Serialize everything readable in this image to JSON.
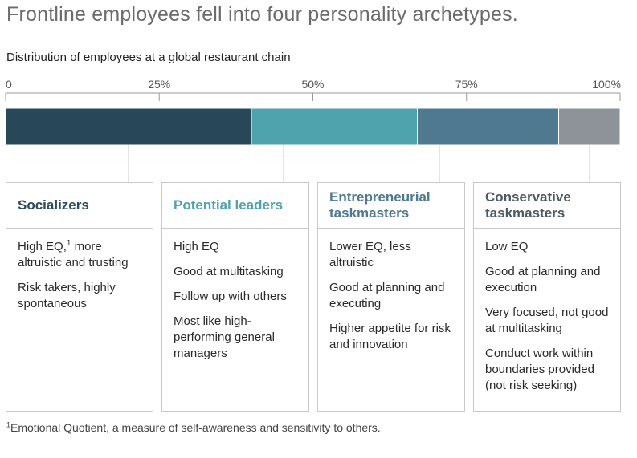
{
  "title": "Frontline employees fell into four personality archetypes.",
  "subtitle": "Distribution of employees at a global restaurant chain",
  "chart_data": {
    "type": "bar",
    "orientation": "horizontal-stacked",
    "xlim": [
      0,
      100
    ],
    "ticks": [
      {
        "value": 0,
        "label": "0"
      },
      {
        "value": 25,
        "label": "25%"
      },
      {
        "value": 50,
        "label": "50%"
      },
      {
        "value": 75,
        "label": "75%"
      },
      {
        "value": 100,
        "label": "100%"
      }
    ],
    "segments": [
      {
        "name": "Socializers",
        "value": 40,
        "color": "#284759"
      },
      {
        "name": "Potential leaders",
        "value": 27,
        "color": "#4fa3ad"
      },
      {
        "name": "Entrepreneurial taskmasters",
        "value": 23,
        "color": "#4e7991"
      },
      {
        "name": "Conservative taskmasters",
        "value": 10,
        "color": "#8d9399"
      }
    ]
  },
  "cards": [
    {
      "title": "Socializers",
      "color": "#2b4a5b",
      "items": [
        "High EQ,|1| more altruistic and trusting",
        "Risk takers, highly spontaneous"
      ]
    },
    {
      "title": "Potential leaders",
      "color": "#4fa3ad",
      "items": [
        "High EQ",
        "Good at multitasking",
        "Follow up with others",
        "Most like high-performing general managers"
      ]
    },
    {
      "title": "Entrepreneurial taskmasters",
      "color": "#4e7991",
      "items": [
        "Lower EQ, less altruistic",
        "Good at planning and executing",
        "Higher appetite for risk and innovation"
      ]
    },
    {
      "title": "Conservative taskmasters",
      "color": "#4d5a63",
      "items": [
        "Low EQ",
        "Good at planning and execution",
        "Very focused, not good at multitasking",
        "Conduct work within boundaries provided (not risk seeking)"
      ]
    }
  ],
  "footnote": {
    "marker": "1",
    "text": "Emotional Quotient, a measure of self-awareness and sensitivity to others."
  }
}
